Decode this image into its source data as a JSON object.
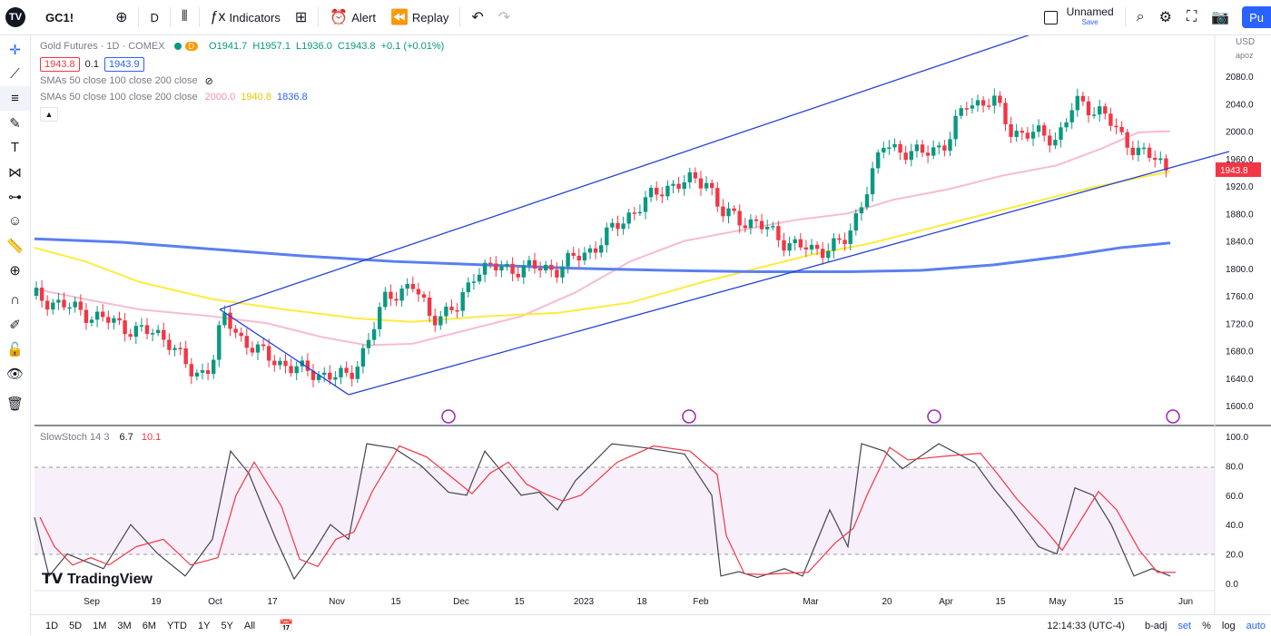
{
  "toolbar": {
    "symbol": "GC1!",
    "interval": "D",
    "indicators_label": "Indicators",
    "alert_label": "Alert",
    "replay_label": "Replay",
    "layout_name": "Unnamed",
    "layout_status": "Save",
    "publish_label": "Pu"
  },
  "legend": {
    "title": "Gold Futures · 1D · COMEX",
    "interval_badge": "D",
    "ohlc": "O1941.7  H1957.1  L1936.0  C1943.8  +0.1 (+0.01%)",
    "bid": "1943.8",
    "spread": "0.1",
    "ask": "1943.9",
    "sma_row1": "SMAs 50 close 100 close 200 close",
    "sma_row2": "SMAs 50 close 100 close 200 close",
    "sma_values": [
      "2000.0",
      "1940.8",
      "1836.8"
    ]
  },
  "price_axis": {
    "currency": "USD",
    "scale_label": "apoz",
    "ticks": [
      "2080.0",
      "2040.0",
      "2000.0",
      "1960.0",
      "1920.0",
      "1880.0",
      "1840.0",
      "1800.0",
      "1760.0",
      "1720.0",
      "1680.0",
      "1640.0",
      "1600.0"
    ]
  },
  "stoch": {
    "label": "SlowStoch 14 3",
    "k_value": "6.7",
    "d_value": "10.1",
    "ticks": [
      "100.0",
      "80.0",
      "60.0",
      "40.0",
      "20.0",
      "0.0"
    ]
  },
  "time_axis": {
    "labels": [
      "Sep",
      "19",
      "Oct",
      "17",
      "Nov",
      "15",
      "Dec",
      "15",
      "2023",
      "18",
      "Feb",
      "Mar",
      "20",
      "Apr",
      "15",
      "May",
      "15",
      "Jun"
    ]
  },
  "watermark": "TradingView",
  "bottom": {
    "ranges": [
      "1D",
      "5D",
      "1M",
      "3M",
      "6M",
      "YTD",
      "1Y",
      "5Y",
      "All"
    ],
    "clock": "12:14:33 (UTC-4)",
    "badj": "b-adj",
    "set": "set",
    "percent": "%",
    "log": "log",
    "auto": "auto"
  },
  "colors": {
    "up": "#089981",
    "down": "#f23645",
    "sma50": "#f8bbd0",
    "sma100": "#ffeb3b",
    "sma200": "#5b7ff0",
    "channel": "#2743d6",
    "stoch_k": "#434651",
    "stoch_d": "#f23645"
  },
  "chart_data": {
    "type": "candlestick",
    "ylim": [
      1600,
      2100
    ],
    "last_close": 1943.8
  }
}
